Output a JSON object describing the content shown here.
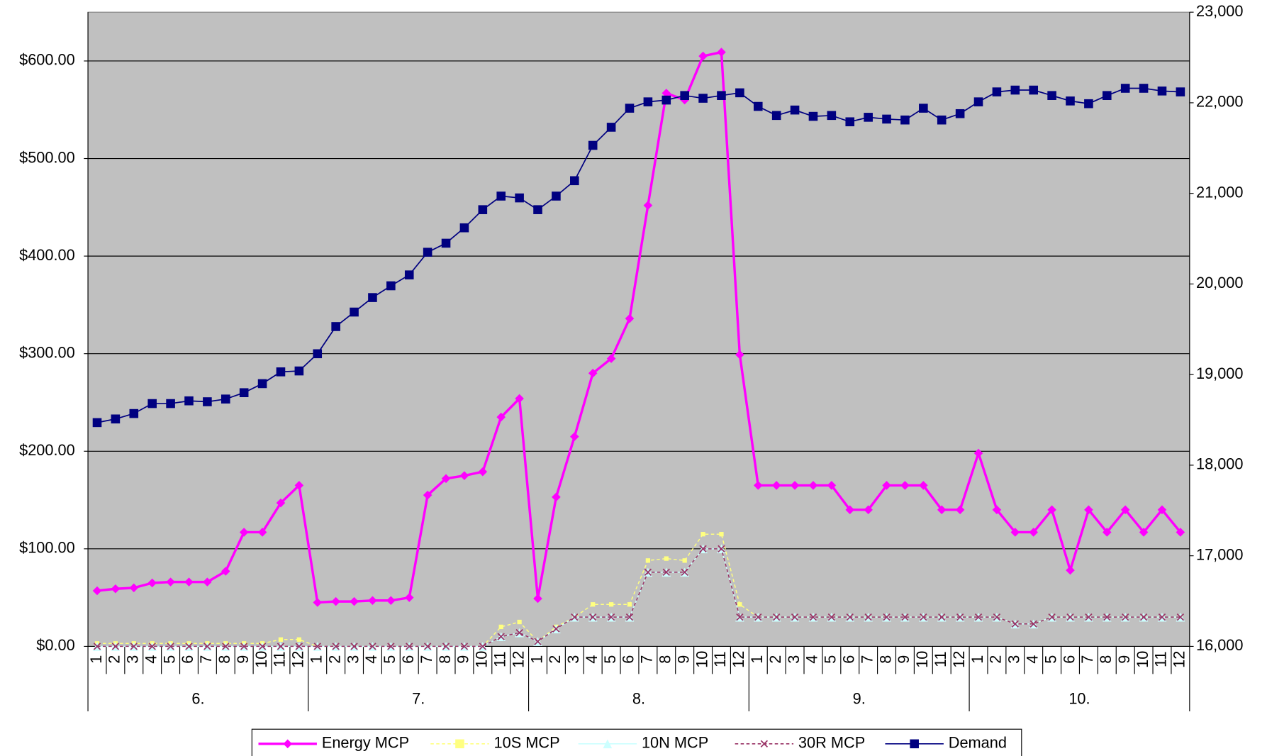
{
  "chart_data": {
    "type": "line",
    "categories": [
      "1",
      "2",
      "3",
      "4",
      "5",
      "6",
      "7",
      "8",
      "9",
      "10",
      "11",
      "12",
      "1",
      "2",
      "3",
      "4",
      "5",
      "6",
      "7",
      "8",
      "9",
      "10",
      "11",
      "12",
      "1",
      "2",
      "3",
      "4",
      "5",
      "6",
      "7",
      "8",
      "9",
      "10",
      "11",
      "12",
      "1",
      "2",
      "3",
      "4",
      "5",
      "6",
      "7",
      "8",
      "9",
      "10",
      "11",
      "12",
      "1",
      "2",
      "3",
      "4",
      "5",
      "6",
      "7",
      "8",
      "9",
      "10",
      "11",
      "12"
    ],
    "groups": [
      "6.",
      "7.",
      "8.",
      "9.",
      "10."
    ],
    "ylim": [
      0,
      650
    ],
    "yticks": [
      {
        "value": 0,
        "label": "$0.00"
      },
      {
        "value": 100,
        "label": "$100.00"
      },
      {
        "value": 200,
        "label": "$200.00"
      },
      {
        "value": 300,
        "label": "$300.00"
      },
      {
        "value": 400,
        "label": "$400.00"
      },
      {
        "value": 500,
        "label": "$500.00"
      },
      {
        "value": 600,
        "label": "$600.00"
      }
    ],
    "y2lim": [
      16000,
      23000
    ],
    "y2ticks": [
      {
        "value": 16000,
        "label": "16,000"
      },
      {
        "value": 17000,
        "label": "17,000"
      },
      {
        "value": 18000,
        "label": "18,000"
      },
      {
        "value": 19000,
        "label": "19,000"
      },
      {
        "value": 20000,
        "label": "20,000"
      },
      {
        "value": 21000,
        "label": "21,000"
      },
      {
        "value": 22000,
        "label": "22,000"
      },
      {
        "value": 23000,
        "label": "23,000"
      }
    ],
    "grid": true,
    "legend": "bottom",
    "series": [
      {
        "name": "Energy MCP",
        "color": "#ff00ff",
        "marker": "diamond",
        "dashed": false,
        "values": [
          57,
          59,
          60,
          65,
          66,
          66,
          66,
          77,
          117,
          117,
          147,
          165,
          45,
          46,
          46,
          47,
          47,
          50,
          155,
          172,
          175,
          179,
          235,
          254,
          49,
          153,
          215,
          280,
          295,
          336,
          452,
          567,
          560,
          605,
          609,
          299,
          165,
          165,
          165,
          165,
          165,
          140,
          140,
          165,
          165,
          165,
          140,
          140,
          198,
          140,
          117,
          117,
          140,
          78,
          140,
          117,
          140,
          117,
          140,
          117
        ]
      },
      {
        "name": "10S MCP",
        "color": "#ffff80",
        "marker": "square",
        "dashed": true,
        "values": [
          3,
          3,
          3,
          3,
          3,
          3,
          3,
          3,
          3,
          3,
          7,
          7,
          0,
          0,
          0,
          0,
          0,
          0,
          0,
          0,
          0,
          0,
          20,
          25,
          5,
          20,
          30,
          43,
          43,
          43,
          88,
          90,
          88,
          115,
          115,
          43,
          30,
          30,
          30,
          30,
          30,
          30,
          30,
          30,
          30,
          30,
          30,
          30,
          30,
          30,
          23,
          23,
          30,
          30,
          30,
          30,
          30,
          30,
          30,
          30
        ]
      },
      {
        "name": "10N MCP",
        "color": "#ccffff",
        "marker": "triangle",
        "dashed": false,
        "values": [
          0,
          0,
          0,
          0,
          0,
          0,
          0,
          0,
          0,
          0,
          0,
          0,
          0,
          0,
          0,
          0,
          0,
          0,
          0,
          0,
          0,
          0,
          10,
          14,
          5,
          18,
          30,
          30,
          30,
          30,
          76,
          76,
          76,
          100,
          100,
          30,
          30,
          30,
          30,
          30,
          30,
          30,
          30,
          30,
          30,
          30,
          30,
          30,
          30,
          30,
          23,
          23,
          30,
          30,
          30,
          30,
          30,
          30,
          30,
          30
        ]
      },
      {
        "name": "30R MCP",
        "color": "#993366",
        "marker": "x",
        "dashed": true,
        "values": [
          0,
          0,
          0,
          0,
          0,
          0,
          0,
          0,
          0,
          0,
          0,
          0,
          0,
          0,
          0,
          0,
          0,
          0,
          0,
          0,
          0,
          0,
          10,
          14,
          5,
          18,
          30,
          30,
          30,
          30,
          76,
          76,
          76,
          100,
          100,
          30,
          30,
          30,
          30,
          30,
          30,
          30,
          30,
          30,
          30,
          30,
          30,
          30,
          30,
          30,
          23,
          23,
          30,
          30,
          30,
          30,
          30,
          30,
          30,
          30
        ]
      },
      {
        "name": "Demand",
        "color": "#000080",
        "marker": "square",
        "dashed": false,
        "axis": "y2",
        "values": [
          18470,
          18510,
          18570,
          18680,
          18680,
          18710,
          18700,
          18730,
          18800,
          18900,
          19030,
          19040,
          19230,
          19530,
          19690,
          19850,
          19980,
          20100,
          20350,
          20450,
          20620,
          20820,
          20970,
          20950,
          20820,
          20970,
          21140,
          21530,
          21730,
          21940,
          22010,
          22030,
          22080,
          22050,
          22080,
          22110,
          21960,
          21860,
          21920,
          21850,
          21860,
          21790,
          21840,
          21820,
          21810,
          21940,
          21810,
          21880,
          22010,
          22120,
          22140,
          22140,
          22080,
          22020,
          21990,
          22080,
          22160,
          22160,
          22130,
          22120
        ]
      }
    ]
  }
}
